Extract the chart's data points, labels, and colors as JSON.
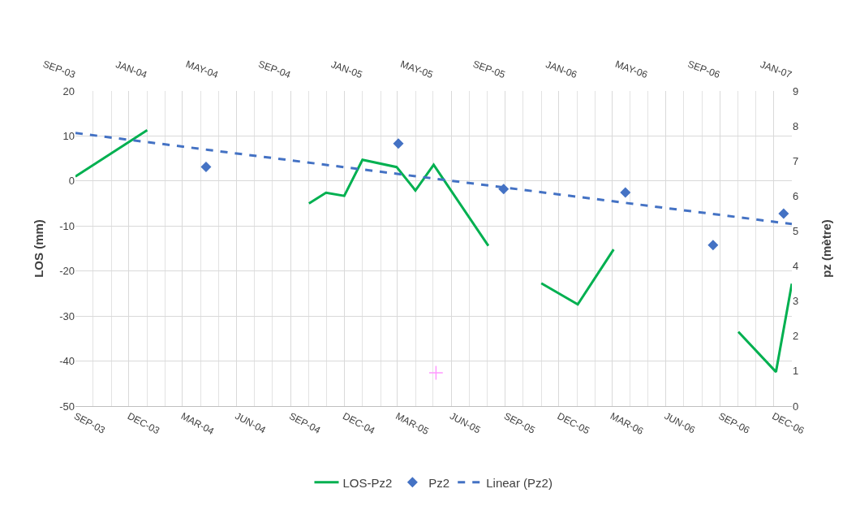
{
  "chart_data": {
    "type": "line",
    "ylabel": "LOS (mm)",
    "y2label": "pz (mètre)",
    "xlim": [
      "2003-09-01",
      "2007-01-01"
    ],
    "xticks": [
      {
        "value": "2003-09-01",
        "label": "SEP-03"
      },
      {
        "value": "2003-12-01",
        "label": "DEC-03"
      },
      {
        "value": "2004-03-01",
        "label": "MAR-04"
      },
      {
        "value": "2004-06-01",
        "label": "JUN-04"
      },
      {
        "value": "2004-09-01",
        "label": "SEP-04"
      },
      {
        "value": "2004-12-01",
        "label": "DEC-04"
      },
      {
        "value": "2005-03-01",
        "label": "MAR-05"
      },
      {
        "value": "2005-06-01",
        "label": "JUN-05"
      },
      {
        "value": "2005-09-01",
        "label": "SEP-05"
      },
      {
        "value": "2005-12-01",
        "label": "DEC-05"
      },
      {
        "value": "2006-03-01",
        "label": "MAR-06"
      },
      {
        "value": "2006-06-01",
        "label": "JUN-06"
      },
      {
        "value": "2006-09-01",
        "label": "SEP-06"
      },
      {
        "value": "2006-12-01",
        "label": "DEC-06"
      }
    ],
    "x2lim": [
      "2003-09-01",
      "2007-01-01"
    ],
    "x2ticks": [
      {
        "value": "2003-09-01",
        "label": "SEP-03"
      },
      {
        "value": "2004-01-01",
        "label": "JAN-04"
      },
      {
        "value": "2004-05-01",
        "label": "MAY-04"
      },
      {
        "value": "2004-09-01",
        "label": "SEP-04"
      },
      {
        "value": "2005-01-01",
        "label": "JAN-05"
      },
      {
        "value": "2005-05-01",
        "label": "MAY-05"
      },
      {
        "value": "2005-09-01",
        "label": "SEP-05"
      },
      {
        "value": "2006-01-01",
        "label": "JAN-06"
      },
      {
        "value": "2006-05-01",
        "label": "MAY-06"
      },
      {
        "value": "2006-09-01",
        "label": "SEP-06"
      },
      {
        "value": "2007-01-01",
        "label": "JAN-07"
      }
    ],
    "ylim": [
      -50,
      20
    ],
    "yticks": [
      -50,
      -40,
      -30,
      -20,
      -10,
      0,
      10,
      20
    ],
    "y2lim": [
      0,
      9
    ],
    "y2ticks": [
      0,
      1,
      2,
      3,
      4,
      5,
      6,
      7,
      8,
      9
    ],
    "grid": true,
    "legend": "bottom",
    "series": [
      {
        "name": "LOS-Pz2",
        "type": "line",
        "color": "#00b050",
        "marker": "none",
        "line_style": "solid",
        "x": [
          "2003-09-01",
          "2004-01-01",
          "2004-05-01",
          "2004-10-02",
          "2004-10-31",
          "2004-12-01",
          "2005-01-01",
          "2005-02-28",
          "2005-04-01",
          "2005-05-02",
          "2005-08-03",
          "2005-09-15",
          "2005-11-01",
          "2006-01-02",
          "2006-03-04",
          "2006-06-01",
          "2006-10-02",
          "2006-12-05",
          "2007-01-01"
        ],
        "values": [
          1,
          11.3,
          null,
          -5,
          -2.6,
          -3.3,
          4.7,
          3.1,
          -2.1,
          3.6,
          -14.4,
          null,
          -22.7,
          -27.4,
          -15.2,
          null,
          -33.5,
          -42.4,
          -22.8
        ]
      },
      {
        "type": "scatter",
        "color": "#ff99ff",
        "marker": "cross",
        "x": [
          "2005-05-06"
        ],
        "values": [
          -42.6
        ]
      },
      {
        "name": "Pz2",
        "type": "scatter",
        "axis": "y2",
        "color": "#4472c4",
        "marker": "diamond",
        "x": [
          "2004-04-10",
          "2005-03-03",
          "2005-08-29",
          "2006-03-24",
          "2006-08-20",
          "2006-12-18"
        ],
        "values": [
          6.83,
          7.5,
          6.2,
          6.1,
          4.6,
          5.5
        ]
      },
      {
        "name": "Linear (Pz2)",
        "type": "line",
        "axis": "y2",
        "color": "#4472c4",
        "marker": "none",
        "line_style": "dashed",
        "x": [
          "2003-09-01",
          "2007-01-01"
        ],
        "values": [
          7.8,
          5.2
        ]
      }
    ]
  }
}
